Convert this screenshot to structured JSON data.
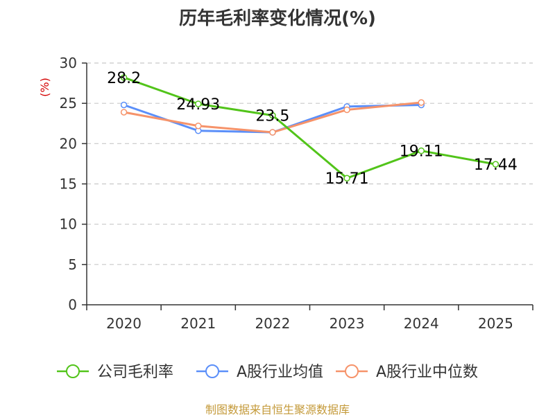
{
  "chart_data": {
    "type": "line",
    "title": "历年毛利率变化情况(%)",
    "ylabel": "(%)",
    "xlabel": "",
    "categories": [
      "2020",
      "2021",
      "2022",
      "2023",
      "2024",
      "2025"
    ],
    "ylim": [
      0,
      30
    ],
    "yticks": [
      0,
      5,
      10,
      15,
      20,
      25,
      30
    ],
    "grid": true,
    "legend_position": "bottom",
    "series": [
      {
        "name": "公司毛利率",
        "color": "#52c41a",
        "values": [
          28.2,
          24.93,
          23.5,
          15.71,
          19.11,
          17.44
        ],
        "labels": [
          "28.2",
          "24.93",
          "23.5",
          "15.71",
          "19.11",
          "17.44"
        ]
      },
      {
        "name": "A股行业均值",
        "color": "#5b8ff9",
        "values": [
          24.8,
          21.6,
          21.4,
          24.6,
          24.8,
          null
        ]
      },
      {
        "name": "A股行业中位数",
        "color": "#f6936a",
        "values": [
          23.9,
          22.2,
          21.4,
          24.2,
          25.1,
          null
        ]
      }
    ]
  },
  "source": "制图数据来自恒生聚源数据库"
}
